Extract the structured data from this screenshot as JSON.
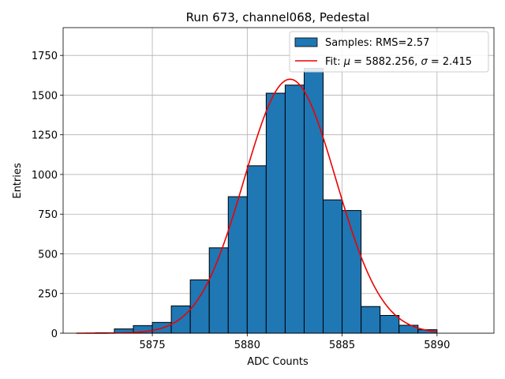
{
  "chart_data": {
    "type": "bar",
    "title": "Run 673, channel068, Pedestal",
    "xlabel": "ADC Counts",
    "ylabel": "Entries",
    "xlim": [
      5870.3,
      5893.0
    ],
    "ylim": [
      0,
      1925
    ],
    "xticks": [
      5875,
      5880,
      5885,
      5890
    ],
    "yticks": [
      0,
      250,
      500,
      750,
      1000,
      1250,
      1500,
      1750
    ],
    "grid": true,
    "legend_position": "top-right",
    "histogram": {
      "name": "Samples: RMS=2.57",
      "color": "#1f77b4",
      "bins": [
        {
          "x0": 5872.0,
          "x1": 5873.0,
          "value": 3
        },
        {
          "x0": 5873.0,
          "x1": 5874.0,
          "value": 27
        },
        {
          "x0": 5874.0,
          "x1": 5875.0,
          "value": 48
        },
        {
          "x0": 5875.0,
          "x1": 5876.0,
          "value": 68
        },
        {
          "x0": 5876.0,
          "x1": 5877.0,
          "value": 172
        },
        {
          "x0": 5877.0,
          "x1": 5878.0,
          "value": 336
        },
        {
          "x0": 5878.0,
          "x1": 5879.0,
          "value": 538
        },
        {
          "x0": 5879.0,
          "x1": 5880.0,
          "value": 860
        },
        {
          "x0": 5880.0,
          "x1": 5881.0,
          "value": 1055
        },
        {
          "x0": 5881.0,
          "x1": 5882.0,
          "value": 1512
        },
        {
          "x0": 5882.0,
          "x1": 5883.0,
          "value": 1563
        },
        {
          "x0": 5883.0,
          "x1": 5884.0,
          "value": 1668
        },
        {
          "x0": 5884.0,
          "x1": 5885.0,
          "value": 840
        },
        {
          "x0": 5885.0,
          "x1": 5886.0,
          "value": 773
        },
        {
          "x0": 5886.0,
          "x1": 5887.0,
          "value": 168
        },
        {
          "x0": 5887.0,
          "x1": 5888.0,
          "value": 112
        },
        {
          "x0": 5888.0,
          "x1": 5889.0,
          "value": 50
        },
        {
          "x0": 5889.0,
          "x1": 5890.0,
          "value": 22
        }
      ]
    },
    "fit": {
      "name": "Fit: μ = 5882.256, σ = 2.415",
      "name_parts": {
        "prefix": "Fit: ",
        "mu_symbol": "μ",
        "mid": " = 5882.256, ",
        "sigma_symbol": "σ",
        "suffix": " = 2.415"
      },
      "color": "#ee0000",
      "mu": 5882.256,
      "sigma": 2.415,
      "amplitude": 1600,
      "x_range": [
        5871.0,
        5890.0
      ]
    }
  }
}
